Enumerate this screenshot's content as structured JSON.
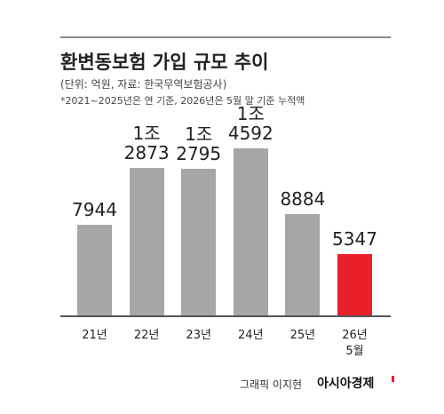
{
  "chart_data": {
    "type": "bar",
    "title": "환변동보험 가입 규모 추이",
    "subtitle": "(단위: 억원, 자료: 한국무역보험공사)",
    "note": "*2021~2025년은 연 기준, 2026년은 5월 말 기준 누적액",
    "categories": [
      "21년",
      "22년",
      "23년",
      "24년",
      "25년",
      "26년 5월"
    ],
    "values": [
      7944,
      12873,
      12795,
      14592,
      8884,
      5347
    ],
    "value_labels": [
      "7944",
      "1조 2873",
      "1조 2795",
      "1조 4592",
      "8884",
      "5347"
    ],
    "colors": [
      "#a6a6a6",
      "#a6a6a6",
      "#a6a6a6",
      "#a6a6a6",
      "#a6a6a6",
      "#e8202a"
    ],
    "ylim": [
      0,
      15400
    ],
    "credit": "그래픽 이지현",
    "brand": "아시아경제"
  }
}
